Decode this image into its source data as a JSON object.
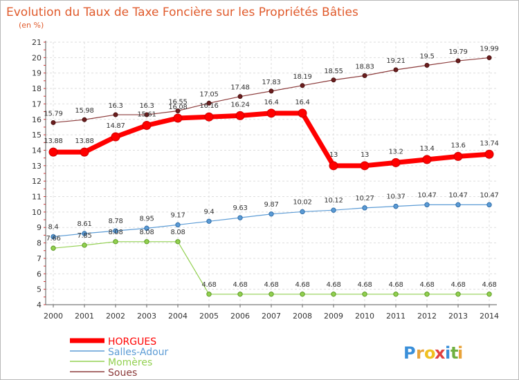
{
  "chart_data": {
    "type": "line",
    "title": "Evolution du Taux de Taxe Foncière sur les Propriétés Bâties",
    "subtitle": "(en %)",
    "xlabel": "",
    "ylabel": "",
    "ylim": [
      4,
      21
    ],
    "yticks": [
      4,
      5,
      6,
      7,
      8,
      9,
      10,
      11,
      12,
      13,
      14,
      15,
      16,
      17,
      18,
      19,
      20,
      21
    ],
    "grid": true,
    "legend_position": "bottom-left",
    "x": [
      "2000",
      "2001",
      "2002",
      "2003",
      "2004",
      "2005",
      "2006",
      "2007",
      "2008",
      "2009",
      "2010",
      "2011",
      "2012",
      "2013",
      "2014"
    ],
    "series": [
      {
        "name": "HORGUES",
        "color": "#ff0000",
        "values": [
          13.88,
          13.88,
          14.87,
          15.61,
          16.08,
          16.16,
          16.24,
          16.4,
          16.4,
          13,
          13,
          13.2,
          13.4,
          13.6,
          13.74
        ],
        "labels": [
          "13.88",
          "13.88",
          "14.87",
          "15.61",
          "16.08",
          "16.16",
          "16.24",
          "16.4",
          "16.4",
          "13",
          "13",
          "13.2",
          "13.4",
          "13.6",
          "13.74"
        ]
      },
      {
        "name": "Salles-Adour",
        "color": "#5b9bd5",
        "values": [
          8.4,
          8.61,
          8.78,
          8.95,
          9.17,
          9.4,
          9.63,
          9.87,
          10.02,
          10.12,
          10.27,
          10.37,
          10.47,
          10.47,
          10.47
        ],
        "labels": [
          "8.4",
          "8.61",
          "8.78",
          "8.95",
          "9.17",
          "9.4",
          "9.63",
          "9.87",
          "10.02",
          "10.12",
          "10.27",
          "10.37",
          "10.47",
          "10.47",
          "10.47"
        ]
      },
      {
        "name": "Momères",
        "color": "#92d050",
        "values": [
          7.66,
          7.85,
          8.08,
          8.08,
          8.08,
          4.68,
          4.68,
          4.68,
          4.68,
          4.68,
          4.68,
          4.68,
          4.68,
          4.68,
          4.68
        ],
        "labels": [
          "7.66",
          "7.85",
          "8.08",
          "8.08",
          "8.08",
          "4.68",
          "4.68",
          "4.68",
          "4.68",
          "4.68",
          "4.68",
          "4.68",
          "4.68",
          "4.68",
          "4.68"
        ]
      },
      {
        "name": "Soues",
        "color": "#8b3a3a",
        "values": [
          15.79,
          15.98,
          16.3,
          16.3,
          16.55,
          17.05,
          17.48,
          17.83,
          18.19,
          18.55,
          18.83,
          19.21,
          19.5,
          19.79,
          19.99
        ],
        "labels": [
          "15.79",
          "15.98",
          "16.3",
          "16.3",
          "16.55",
          "17.05",
          "17.48",
          "17.83",
          "18.19",
          "18.55",
          "18.83",
          "19.21",
          "19.5",
          "19.79",
          "19.99"
        ]
      }
    ]
  },
  "brand": {
    "letters": [
      "P",
      "r",
      "o",
      "x",
      "i",
      "t",
      "i"
    ],
    "colors": [
      "#3a8fd9",
      "#e8a33a",
      "#f0c020",
      "#e04040",
      "#3a8fd9",
      "#70b040",
      "#e8a33a"
    ]
  }
}
